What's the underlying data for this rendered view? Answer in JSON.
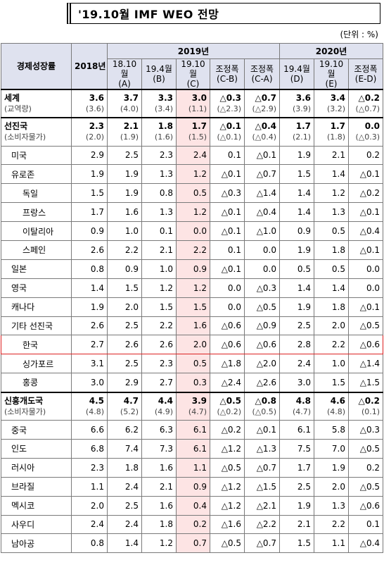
{
  "title": "'19.10월 IMF WEO 전망",
  "unit": "(단위 : %)",
  "header": {
    "label": "경제성장률",
    "y2018": "2018년",
    "y2019": "2019년",
    "y2020": "2020년",
    "cols2019": [
      "18.10월\n(A)",
      "19.4월\n(B)",
      "19.10월\n(C)",
      "조정폭\n(C-B)",
      "조정폭\n(C-A)"
    ],
    "cols2020": [
      "19.4월\n(D)",
      "19.10월\n(E)",
      "조정폭\n(E-D)"
    ]
  },
  "rows": [
    {
      "name": "세계",
      "sub": "(교역량)",
      "level": 0,
      "bold": true,
      "values": [
        "3.6",
        "3.7",
        "3.3",
        "3.0",
        "△0.3",
        "△0.7",
        "3.6",
        "3.4",
        "△0.2"
      ],
      "subvalues": [
        "(3.6)",
        "(4.0)",
        "(3.4)",
        "(1.1)",
        "(△2.3)",
        "(△2.9)",
        "(3.9)",
        "(3.2)",
        "(△0.7)"
      ]
    },
    {
      "name": "선진국",
      "sub": "(소비자물가)",
      "level": 0,
      "bold": true,
      "values": [
        "2.3",
        "2.1",
        "1.8",
        "1.7",
        "△0.1",
        "△0.4",
        "1.7",
        "1.7",
        "0.0"
      ],
      "subvalues": [
        "(2.0)",
        "(1.9)",
        "(1.6)",
        "(1.5)",
        "(△0.1)",
        "(△0.4)",
        "(2.1)",
        "(1.8)",
        "(△0.3)"
      ]
    },
    {
      "name": "미국",
      "level": 1,
      "values": [
        "2.9",
        "2.5",
        "2.3",
        "2.4",
        "0.1",
        "△0.1",
        "1.9",
        "2.1",
        "0.2"
      ]
    },
    {
      "name": "유로존",
      "level": 1,
      "values": [
        "1.9",
        "1.9",
        "1.3",
        "1.2",
        "△0.1",
        "△0.7",
        "1.5",
        "1.4",
        "△0.1"
      ]
    },
    {
      "name": "독일",
      "level": 2,
      "values": [
        "1.5",
        "1.9",
        "0.8",
        "0.5",
        "△0.3",
        "△1.4",
        "1.4",
        "1.2",
        "△0.2"
      ]
    },
    {
      "name": "프랑스",
      "level": 2,
      "values": [
        "1.7",
        "1.6",
        "1.3",
        "1.2",
        "△0.1",
        "△0.4",
        "1.4",
        "1.3",
        "△0.1"
      ]
    },
    {
      "name": "이탈리아",
      "level": 2,
      "values": [
        "0.9",
        "1.0",
        "0.1",
        "0.0",
        "△0.1",
        "△1.0",
        "0.9",
        "0.5",
        "△0.4"
      ]
    },
    {
      "name": "스페인",
      "level": 2,
      "values": [
        "2.6",
        "2.2",
        "2.1",
        "2.2",
        "0.1",
        "0.0",
        "1.9",
        "1.8",
        "△0.1"
      ]
    },
    {
      "name": "일본",
      "level": 1,
      "values": [
        "0.8",
        "0.9",
        "1.0",
        "0.9",
        "△0.1",
        "0.0",
        "0.5",
        "0.5",
        "0.0"
      ]
    },
    {
      "name": "영국",
      "level": 1,
      "values": [
        "1.4",
        "1.5",
        "1.2",
        "1.2",
        "0.0",
        "△0.3",
        "1.4",
        "1.4",
        "0.0"
      ]
    },
    {
      "name": "캐나다",
      "level": 1,
      "values": [
        "1.9",
        "2.0",
        "1.5",
        "1.5",
        "0.0",
        "△0.5",
        "1.9",
        "1.8",
        "△0.1"
      ]
    },
    {
      "name": "기타 선진국",
      "level": 1,
      "values": [
        "2.6",
        "2.5",
        "2.2",
        "1.6",
        "△0.6",
        "△0.9",
        "2.5",
        "2.0",
        "△0.5"
      ]
    },
    {
      "name": "한국",
      "level": 2,
      "highlight": true,
      "values": [
        "2.7",
        "2.6",
        "2.6",
        "2.0",
        "△0.6",
        "△0.6",
        "2.8",
        "2.2",
        "△0.6"
      ]
    },
    {
      "name": "싱가포르",
      "level": 2,
      "values": [
        "3.1",
        "2.5",
        "2.3",
        "0.5",
        "△1.8",
        "△2.0",
        "2.4",
        "1.0",
        "△1.4"
      ]
    },
    {
      "name": "홍콩",
      "level": 2,
      "values": [
        "3.0",
        "2.9",
        "2.7",
        "0.3",
        "△2.4",
        "△2.6",
        "3.0",
        "1.5",
        "△1.5"
      ]
    },
    {
      "name": "신흥개도국",
      "sub": "(소비자물가)",
      "level": 0,
      "bold": true,
      "values": [
        "4.5",
        "4.7",
        "4.4",
        "3.9",
        "△0.5",
        "△0.8",
        "4.8",
        "4.6",
        "△0.2"
      ],
      "subvalues": [
        "(4.8)",
        "(5.2)",
        "(4.9)",
        "(4.7)",
        "(△0.2)",
        "(△0.5)",
        "(4.7)",
        "(4.8)",
        "(0.1)"
      ]
    },
    {
      "name": "중국",
      "level": 1,
      "values": [
        "6.6",
        "6.2",
        "6.3",
        "6.1",
        "△0.2",
        "△0.1",
        "6.1",
        "5.8",
        "△0.3"
      ]
    },
    {
      "name": "인도",
      "level": 1,
      "values": [
        "6.8",
        "7.4",
        "7.3",
        "6.1",
        "△1.2",
        "△1.3",
        "7.5",
        "7.0",
        "△0.5"
      ]
    },
    {
      "name": "러시아",
      "level": 1,
      "values": [
        "2.3",
        "1.8",
        "1.6",
        "1.1",
        "△0.5",
        "△0.7",
        "1.7",
        "1.9",
        "0.2"
      ]
    },
    {
      "name": "브라질",
      "level": 1,
      "values": [
        "1.1",
        "2.4",
        "2.1",
        "0.9",
        "△1.2",
        "△1.5",
        "2.5",
        "2.0",
        "△0.5"
      ]
    },
    {
      "name": "멕시코",
      "level": 1,
      "values": [
        "2.0",
        "2.5",
        "1.6",
        "0.4",
        "△1.2",
        "△2.1",
        "1.9",
        "1.3",
        "△0.6"
      ]
    },
    {
      "name": "사우디",
      "level": 1,
      "values": [
        "2.4",
        "2.4",
        "1.8",
        "0.2",
        "△1.6",
        "△2.2",
        "2.1",
        "2.2",
        "0.1"
      ]
    },
    {
      "name": "남아공",
      "level": 1,
      "values": [
        "0.8",
        "1.4",
        "1.2",
        "0.7",
        "△0.5",
        "△0.7",
        "1.5",
        "1.1",
        "△0.4"
      ]
    }
  ],
  "colors": {
    "header_bg": "#dfe2ef",
    "highlight_col": "#fde4e4",
    "korea_border": "#dd2222"
  }
}
